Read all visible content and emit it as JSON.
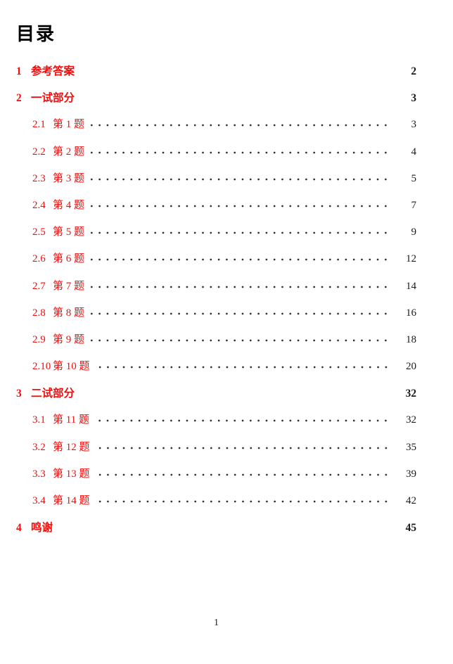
{
  "page": {
    "title": "目录",
    "footer_page_number": "1"
  },
  "colors": {
    "link_red": "#f30d0d",
    "page_number_black": "#1b1b1b"
  },
  "toc": {
    "entries": [
      {
        "level": 1,
        "number": "1",
        "title": "参考答案",
        "page": "2"
      },
      {
        "level": 1,
        "number": "2",
        "title": "一试部分",
        "page": "3"
      },
      {
        "level": 2,
        "number": "2.1",
        "title": "第 1 题",
        "page": "3"
      },
      {
        "level": 2,
        "number": "2.2",
        "title": "第 2 题",
        "page": "4"
      },
      {
        "level": 2,
        "number": "2.3",
        "title": "第 3 题",
        "page": "5"
      },
      {
        "level": 2,
        "number": "2.4",
        "title": "第 4 题",
        "page": "7"
      },
      {
        "level": 2,
        "number": "2.5",
        "title": "第 5 题",
        "page": "9"
      },
      {
        "level": 2,
        "number": "2.6",
        "title": "第 6 题",
        "page": "12"
      },
      {
        "level": 2,
        "number": "2.7",
        "title": "第 7 题",
        "page": "14"
      },
      {
        "level": 2,
        "number": "2.8",
        "title": "第 8 题",
        "page": "16"
      },
      {
        "level": 2,
        "number": "2.9",
        "title": "第 9 题",
        "page": "18"
      },
      {
        "level": 2,
        "number": "2.10",
        "title": "第 10 题",
        "page": "20"
      },
      {
        "level": 1,
        "number": "3",
        "title": "二试部分",
        "page": "32"
      },
      {
        "level": 2,
        "number": "3.1",
        "title": "第 11 题",
        "page": "32"
      },
      {
        "level": 2,
        "number": "3.2",
        "title": "第 12 题",
        "page": "35"
      },
      {
        "level": 2,
        "number": "3.3",
        "title": "第 13 题",
        "page": "39"
      },
      {
        "level": 2,
        "number": "3.4",
        "title": "第 14 题",
        "page": "42"
      },
      {
        "level": 1,
        "number": "4",
        "title": "鸣谢",
        "page": "45"
      }
    ]
  }
}
